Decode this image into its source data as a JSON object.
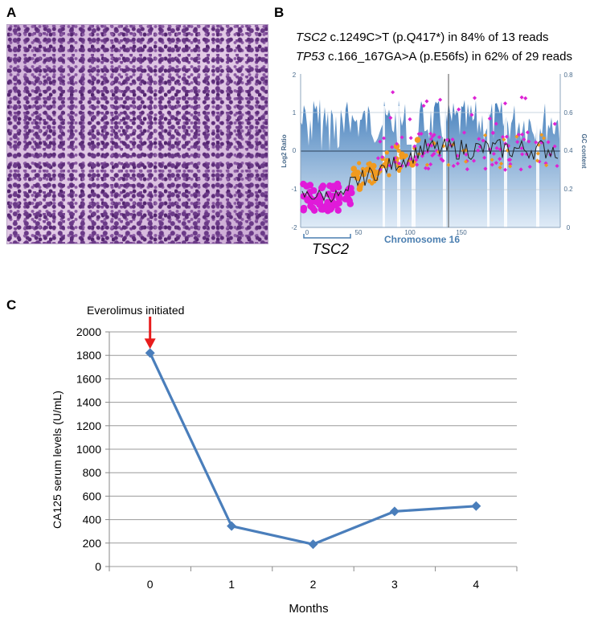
{
  "panels": {
    "a": "A",
    "b": "B",
    "c": "C"
  },
  "mutations": [
    {
      "gene": "TSC2",
      "detail": " c.1249C>T (p.Q417*) in 84% of 13 reads"
    },
    {
      "gene": "TP53",
      "detail": " c.166_167GA>A (p.E56fs) in 62% of 29 reads"
    }
  ],
  "copy_number": {
    "left_axis_title": "Log2 Ratio",
    "right_axis_title": "GC content",
    "x_title": "Chromosome 16",
    "left_ticks": [
      "2",
      "1",
      "0",
      "-1",
      "-2"
    ],
    "right_ticks": [
      "0.8",
      "0.6",
      "0.4",
      "0.2",
      "0"
    ],
    "x_ticks": [
      "0",
      "50",
      "100",
      "150"
    ],
    "region_label": "TSC2"
  },
  "chart_data": {
    "type": "line",
    "title": "",
    "annotation": "Everolimus initiated",
    "x": [
      0,
      1,
      2,
      3,
      4
    ],
    "categories": [
      "0",
      "1",
      "2",
      "3",
      "4"
    ],
    "series": [
      {
        "name": "CA125",
        "values": [
          1820,
          345,
          190,
          470,
          515
        ]
      }
    ],
    "xlabel": "Months",
    "ylabel": "CA125 serum levels (U/mL)",
    "ylim": [
      0,
      2000
    ],
    "yticks": [
      0,
      200,
      400,
      600,
      800,
      1000,
      1200,
      1400,
      1600,
      1800,
      2000
    ],
    "grid": true,
    "colors": {
      "line": "#4a7ebb",
      "arrow": "#e81c1c",
      "grid": "#9a9a9a"
    }
  }
}
